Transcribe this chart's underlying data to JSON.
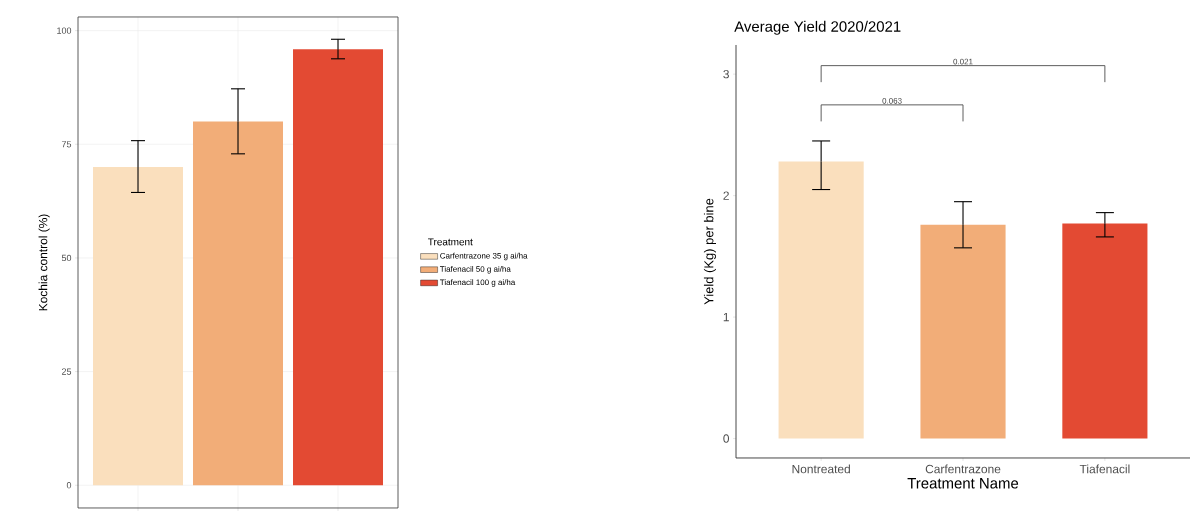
{
  "chart_data": [
    {
      "type": "bar",
      "ylabel": "Kochia control (%)",
      "legend_title": "Treatment",
      "categories": [
        null,
        null,
        null
      ],
      "series": [
        {
          "name": "Carfentrazone 35 g ai/ha",
          "color": "#fadfbd",
          "values": [
            70,
            null,
            null
          ],
          "errors": [
            [
              64.4,
              75.8
            ],
            null,
            null
          ]
        },
        {
          "name": "Tiafenacil 50 g ai/ha",
          "color": "#f2ad78",
          "values": [
            null,
            80,
            null
          ],
          "errors": [
            null,
            [
              72.9,
              87.2
            ],
            null
          ]
        },
        {
          "name": "Tiafenacil 100 g ai/ha",
          "color": "#e34a33",
          "values": [
            null,
            null,
            95.9
          ],
          "errors": [
            null,
            null,
            [
              93.8,
              98.1
            ]
          ]
        }
      ],
      "ylim": [
        -5,
        103
      ],
      "yticks": [
        0,
        25,
        50,
        75,
        100
      ],
      "grid": true,
      "legend": "right",
      "tick_labels": "y"
    },
    {
      "type": "bar",
      "title": "Average Yield 2020/2021",
      "xlabel": "Treatment Name",
      "ylabel": "Yield (Kg) per bine",
      "categories": [
        "Nontreated",
        "Carfentrazone",
        "Tiafenacil"
      ],
      "values": [
        2.28,
        1.76,
        1.77
      ],
      "colors": [
        "#fadfbd",
        "#f2ad78",
        "#e34a33"
      ],
      "errors": [
        [
          2.05,
          2.45
        ],
        [
          1.57,
          1.95
        ],
        [
          1.66,
          1.86
        ]
      ],
      "ylim": [
        -0.16,
        3.24
      ],
      "yticks": [
        0,
        1,
        2,
        3
      ],
      "annotations": [
        "0.063",
        "0.021"
      ]
    }
  ]
}
